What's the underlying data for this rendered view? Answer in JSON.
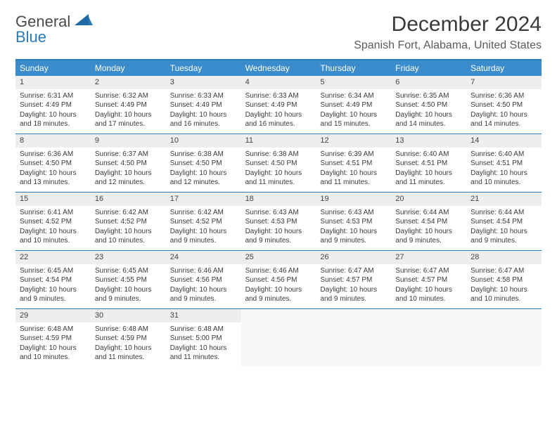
{
  "brand": {
    "line1": "General",
    "line2": "Blue"
  },
  "title": "December 2024",
  "location": "Spanish Fort, Alabama, United States",
  "colors": {
    "accent": "#2a7ab8",
    "header_bg": "#3b8ccc",
    "daynum_bg": "#eeeeee",
    "empty_bg": "#f7f7f7",
    "text": "#3a3a3a"
  },
  "day_names": [
    "Sunday",
    "Monday",
    "Tuesday",
    "Wednesday",
    "Thursday",
    "Friday",
    "Saturday"
  ],
  "weeks": [
    [
      {
        "n": "1",
        "sr": "Sunrise: 6:31 AM",
        "ss": "Sunset: 4:49 PM",
        "d1": "Daylight: 10 hours",
        "d2": "and 18 minutes."
      },
      {
        "n": "2",
        "sr": "Sunrise: 6:32 AM",
        "ss": "Sunset: 4:49 PM",
        "d1": "Daylight: 10 hours",
        "d2": "and 17 minutes."
      },
      {
        "n": "3",
        "sr": "Sunrise: 6:33 AM",
        "ss": "Sunset: 4:49 PM",
        "d1": "Daylight: 10 hours",
        "d2": "and 16 minutes."
      },
      {
        "n": "4",
        "sr": "Sunrise: 6:33 AM",
        "ss": "Sunset: 4:49 PM",
        "d1": "Daylight: 10 hours",
        "d2": "and 16 minutes."
      },
      {
        "n": "5",
        "sr": "Sunrise: 6:34 AM",
        "ss": "Sunset: 4:49 PM",
        "d1": "Daylight: 10 hours",
        "d2": "and 15 minutes."
      },
      {
        "n": "6",
        "sr": "Sunrise: 6:35 AM",
        "ss": "Sunset: 4:50 PM",
        "d1": "Daylight: 10 hours",
        "d2": "and 14 minutes."
      },
      {
        "n": "7",
        "sr": "Sunrise: 6:36 AM",
        "ss": "Sunset: 4:50 PM",
        "d1": "Daylight: 10 hours",
        "d2": "and 14 minutes."
      }
    ],
    [
      {
        "n": "8",
        "sr": "Sunrise: 6:36 AM",
        "ss": "Sunset: 4:50 PM",
        "d1": "Daylight: 10 hours",
        "d2": "and 13 minutes."
      },
      {
        "n": "9",
        "sr": "Sunrise: 6:37 AM",
        "ss": "Sunset: 4:50 PM",
        "d1": "Daylight: 10 hours",
        "d2": "and 12 minutes."
      },
      {
        "n": "10",
        "sr": "Sunrise: 6:38 AM",
        "ss": "Sunset: 4:50 PM",
        "d1": "Daylight: 10 hours",
        "d2": "and 12 minutes."
      },
      {
        "n": "11",
        "sr": "Sunrise: 6:38 AM",
        "ss": "Sunset: 4:50 PM",
        "d1": "Daylight: 10 hours",
        "d2": "and 11 minutes."
      },
      {
        "n": "12",
        "sr": "Sunrise: 6:39 AM",
        "ss": "Sunset: 4:51 PM",
        "d1": "Daylight: 10 hours",
        "d2": "and 11 minutes."
      },
      {
        "n": "13",
        "sr": "Sunrise: 6:40 AM",
        "ss": "Sunset: 4:51 PM",
        "d1": "Daylight: 10 hours",
        "d2": "and 11 minutes."
      },
      {
        "n": "14",
        "sr": "Sunrise: 6:40 AM",
        "ss": "Sunset: 4:51 PM",
        "d1": "Daylight: 10 hours",
        "d2": "and 10 minutes."
      }
    ],
    [
      {
        "n": "15",
        "sr": "Sunrise: 6:41 AM",
        "ss": "Sunset: 4:52 PM",
        "d1": "Daylight: 10 hours",
        "d2": "and 10 minutes."
      },
      {
        "n": "16",
        "sr": "Sunrise: 6:42 AM",
        "ss": "Sunset: 4:52 PM",
        "d1": "Daylight: 10 hours",
        "d2": "and 10 minutes."
      },
      {
        "n": "17",
        "sr": "Sunrise: 6:42 AM",
        "ss": "Sunset: 4:52 PM",
        "d1": "Daylight: 10 hours",
        "d2": "and 9 minutes."
      },
      {
        "n": "18",
        "sr": "Sunrise: 6:43 AM",
        "ss": "Sunset: 4:53 PM",
        "d1": "Daylight: 10 hours",
        "d2": "and 9 minutes."
      },
      {
        "n": "19",
        "sr": "Sunrise: 6:43 AM",
        "ss": "Sunset: 4:53 PM",
        "d1": "Daylight: 10 hours",
        "d2": "and 9 minutes."
      },
      {
        "n": "20",
        "sr": "Sunrise: 6:44 AM",
        "ss": "Sunset: 4:54 PM",
        "d1": "Daylight: 10 hours",
        "d2": "and 9 minutes."
      },
      {
        "n": "21",
        "sr": "Sunrise: 6:44 AM",
        "ss": "Sunset: 4:54 PM",
        "d1": "Daylight: 10 hours",
        "d2": "and 9 minutes."
      }
    ],
    [
      {
        "n": "22",
        "sr": "Sunrise: 6:45 AM",
        "ss": "Sunset: 4:54 PM",
        "d1": "Daylight: 10 hours",
        "d2": "and 9 minutes."
      },
      {
        "n": "23",
        "sr": "Sunrise: 6:45 AM",
        "ss": "Sunset: 4:55 PM",
        "d1": "Daylight: 10 hours",
        "d2": "and 9 minutes."
      },
      {
        "n": "24",
        "sr": "Sunrise: 6:46 AM",
        "ss": "Sunset: 4:56 PM",
        "d1": "Daylight: 10 hours",
        "d2": "and 9 minutes."
      },
      {
        "n": "25",
        "sr": "Sunrise: 6:46 AM",
        "ss": "Sunset: 4:56 PM",
        "d1": "Daylight: 10 hours",
        "d2": "and 9 minutes."
      },
      {
        "n": "26",
        "sr": "Sunrise: 6:47 AM",
        "ss": "Sunset: 4:57 PM",
        "d1": "Daylight: 10 hours",
        "d2": "and 9 minutes."
      },
      {
        "n": "27",
        "sr": "Sunrise: 6:47 AM",
        "ss": "Sunset: 4:57 PM",
        "d1": "Daylight: 10 hours",
        "d2": "and 10 minutes."
      },
      {
        "n": "28",
        "sr": "Sunrise: 6:47 AM",
        "ss": "Sunset: 4:58 PM",
        "d1": "Daylight: 10 hours",
        "d2": "and 10 minutes."
      }
    ],
    [
      {
        "n": "29",
        "sr": "Sunrise: 6:48 AM",
        "ss": "Sunset: 4:59 PM",
        "d1": "Daylight: 10 hours",
        "d2": "and 10 minutes."
      },
      {
        "n": "30",
        "sr": "Sunrise: 6:48 AM",
        "ss": "Sunset: 4:59 PM",
        "d1": "Daylight: 10 hours",
        "d2": "and 11 minutes."
      },
      {
        "n": "31",
        "sr": "Sunrise: 6:48 AM",
        "ss": "Sunset: 5:00 PM",
        "d1": "Daylight: 10 hours",
        "d2": "and 11 minutes."
      },
      null,
      null,
      null,
      null
    ]
  ]
}
